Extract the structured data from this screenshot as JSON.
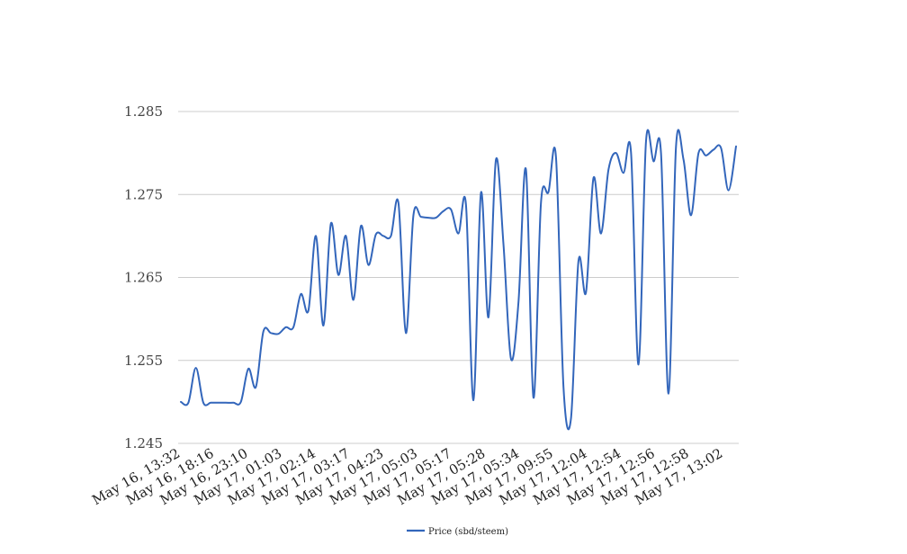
{
  "chart_data": {
    "type": "line",
    "title": "",
    "xlabel": "",
    "ylabel": "",
    "ylim": [
      1.245,
      1.285
    ],
    "y_ticks": [
      "1.245",
      "1.255",
      "1.265",
      "1.275",
      "1.285"
    ],
    "y_tick_values": [
      1.245,
      1.255,
      1.265,
      1.275,
      1.285
    ],
    "x_tick_labels": [
      "May 16, 13:32",
      "May 16, 18:16",
      "May 16, 23:10",
      "May 17, 01:03",
      "May 17, 02:14",
      "May 17, 03:17",
      "May 17, 04:23",
      "May 17, 05:03",
      "May 17, 05:17",
      "May 17, 05:28",
      "May 17, 05:34",
      "May 17, 09:55",
      "May 17, 12:04",
      "May 17, 12:54",
      "May 17, 12:56",
      "May 17, 12:58",
      "May 17, 13:02"
    ],
    "grid": true,
    "legend_position": "bottom",
    "series": [
      {
        "name": "Price (sbd/steem)",
        "color": "#3366bb",
        "values": [
          1.25,
          1.2499,
          1.2541,
          1.2499,
          1.2499,
          1.2499,
          1.2499,
          1.2499,
          1.25,
          1.254,
          1.2518,
          1.2585,
          1.2583,
          1.2582,
          1.259,
          1.259,
          1.263,
          1.261,
          1.27,
          1.2592,
          1.2715,
          1.2653,
          1.27,
          1.2623,
          1.2712,
          1.2665,
          1.2702,
          1.27,
          1.27,
          1.274,
          1.2583,
          1.2725,
          1.2723,
          1.2722,
          1.2722,
          1.273,
          1.2732,
          1.2703,
          1.2738,
          1.2502,
          1.2752,
          1.2602,
          1.2792,
          1.269,
          1.2552,
          1.262,
          1.278,
          1.2505,
          1.274,
          1.2753,
          1.2795,
          1.2518,
          1.248,
          1.267,
          1.2632,
          1.277,
          1.2703,
          1.278,
          1.28,
          1.2776,
          1.2801,
          1.2545,
          1.2814,
          1.279,
          1.28,
          1.251,
          1.2808,
          1.2792,
          1.2725,
          1.28,
          1.2797,
          1.2804,
          1.2806,
          1.2755,
          1.2808
        ]
      }
    ]
  }
}
